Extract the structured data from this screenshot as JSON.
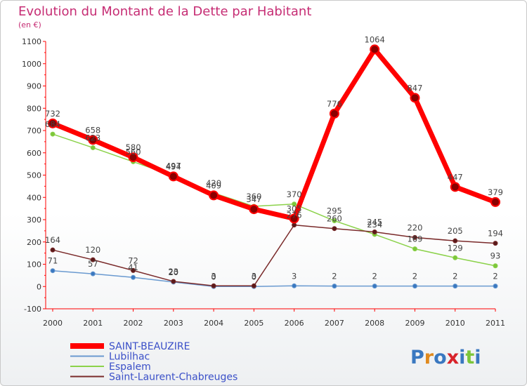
{
  "chart_data": {
    "type": "line",
    "title": "Evolution du Montant de la Dette par Habitant",
    "subtitle": "(en €)",
    "x": [
      "2000",
      "2001",
      "2002",
      "2003",
      "2004",
      "2005",
      "2006",
      "2007",
      "2008",
      "2009",
      "2010",
      "2011"
    ],
    "ylim": [
      -100,
      1100
    ],
    "yticks": [
      -100,
      0,
      100,
      200,
      300,
      400,
      500,
      600,
      700,
      800,
      900,
      1000,
      1100
    ],
    "grid": false,
    "legend_position": "bottom-left",
    "series": [
      {
        "name": "SAINT-BEAUZIRE",
        "color": "#ff0000",
        "values": [
          732,
          658,
          580,
          494,
          409,
          347,
          305,
          776,
          1064,
          847,
          447,
          379
        ]
      },
      {
        "name": "Lubilhac",
        "color": "#6a9ad0",
        "values": [
          71,
          57,
          41,
          20,
          0,
          0,
          3,
          2,
          2,
          2,
          2,
          2
        ]
      },
      {
        "name": "Espalem",
        "color": "#8bd24a",
        "values": [
          684,
          623,
          560,
          497,
          420,
          360,
          370,
          295,
          234,
          169,
          129,
          93
        ]
      },
      {
        "name": "Saint-Laurent-Chabreuges",
        "color": "#7a2a2a",
        "values": [
          164,
          120,
          72,
          23,
          3,
          3,
          276,
          260,
          245,
          220,
          205,
          194
        ]
      }
    ]
  },
  "logo": {
    "text": "Proxiti"
  }
}
